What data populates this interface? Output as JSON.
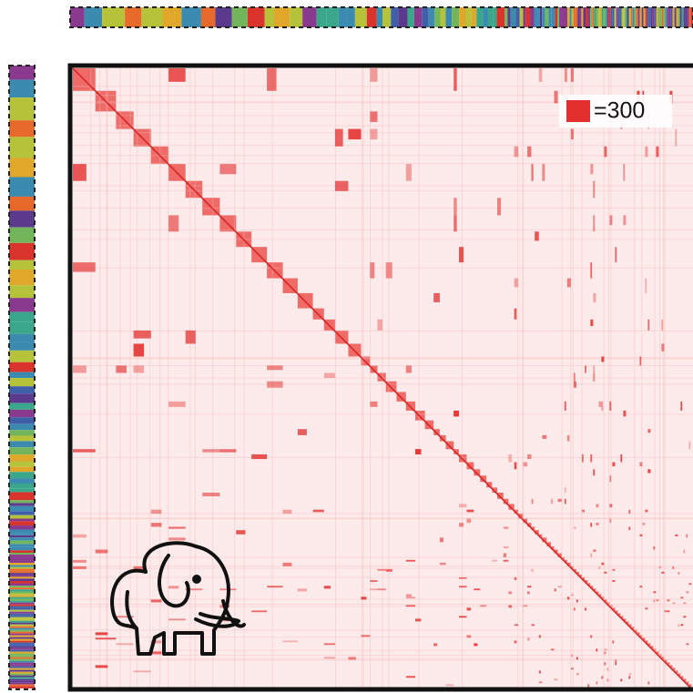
{
  "legend": {
    "label": "=300"
  }
}
